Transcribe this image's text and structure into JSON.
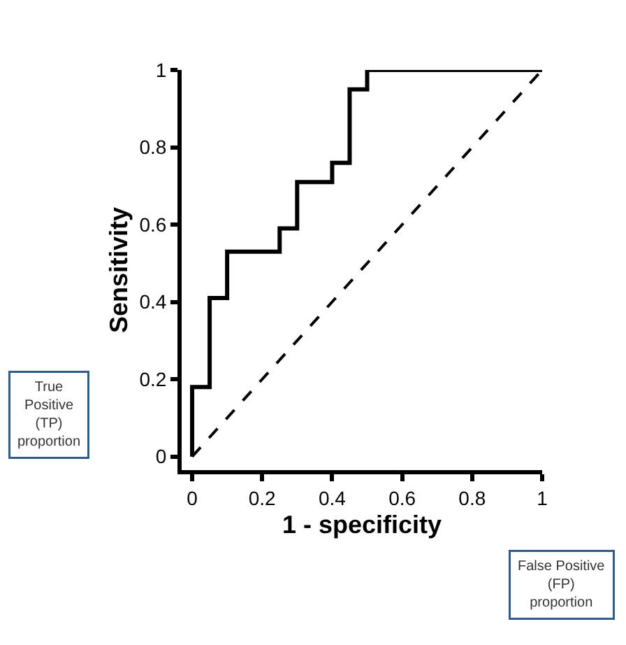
{
  "chart_data": {
    "type": "step",
    "xlabel": "1 - specificity",
    "ylabel": "Sensitivity",
    "series": [
      {
        "color": "#000000",
        "line_style": "solid",
        "x": [
          0,
          0,
          0.05,
          0.1,
          0.25,
          0.3,
          0.4,
          0.45,
          0.5,
          1
        ],
        "values": [
          0,
          0.18,
          0.41,
          0.53,
          0.59,
          0.71,
          0.76,
          0.95,
          1,
          1
        ]
      },
      {
        "type": "line",
        "color": "#000000",
        "line_style": "dashed",
        "x": [
          0,
          1
        ],
        "values": [
          0,
          1
        ]
      }
    ],
    "xlim": [
      -0.03,
      1
    ],
    "ylim": [
      -0.035,
      1
    ],
    "xticks": [
      0,
      0.2,
      0.4,
      0.6,
      0.8,
      1
    ],
    "yticks": [
      0,
      0.2,
      0.4,
      0.6,
      0.8,
      1
    ],
    "annotations": [
      "True\nPositive\n(TP)\nproportion",
      "False Positive\n(FP)\nproportion"
    ]
  }
}
